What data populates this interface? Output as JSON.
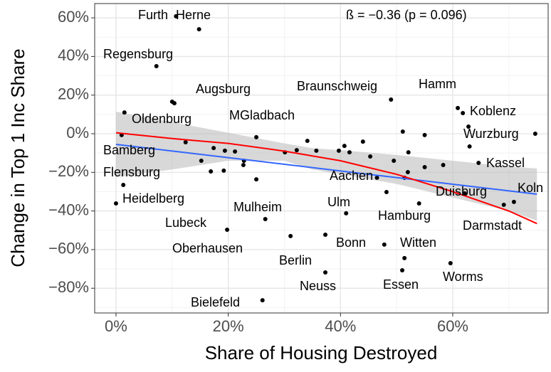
{
  "chart_data": {
    "type": "scatter",
    "x_label": "Share of Housing Destroyed",
    "y_label": "Change in Top 1 Inc Share",
    "annotation": "ß = −0.36 (p = 0.096)",
    "xlim": [
      -3.8,
      77
    ],
    "ylim": [
      -92.8,
      67.4
    ],
    "xticks": [
      {
        "value": 0,
        "label": "0%"
      },
      {
        "value": 20,
        "label": "20%"
      },
      {
        "value": 40,
        "label": "40%"
      },
      {
        "value": 60,
        "label": "60%"
      }
    ],
    "yticks": [
      {
        "value": -80,
        "label": "−80%"
      },
      {
        "value": -60,
        "label": "−60%"
      },
      {
        "value": -40,
        "label": "−40%"
      },
      {
        "value": -20,
        "label": "−20%"
      },
      {
        "value": 0,
        "label": "0%"
      },
      {
        "value": 20,
        "label": "20%"
      },
      {
        "value": 40,
        "label": "40%"
      },
      {
        "value": 60,
        "label": "60%"
      }
    ],
    "grid": true,
    "color": "#000000",
    "labels": [
      "Furth",
      "Herne",
      "Regensburg",
      "Augsburg",
      "MGladbach",
      "Braunschweig",
      "Hamm",
      "Koblenz",
      "Wurzburg",
      "Oldenburg",
      "Bamberg",
      "Flensburg",
      "Heidelberg",
      "Kassel",
      "Koln",
      "Duisburg",
      "Darmstadt",
      "Aachen",
      "Ulm",
      "Hamburg",
      "Lubeck",
      "Mulheim",
      "Oberhausen",
      "Berlin",
      "Bonn",
      "Witten",
      "Neuss",
      "Essen",
      "Worms",
      "Bielefeld",
      null,
      null,
      null,
      null,
      null,
      null,
      null,
      null,
      null,
      null,
      null,
      null,
      null,
      null,
      null,
      null,
      null,
      null,
      null,
      null,
      null,
      null,
      null,
      null,
      null,
      null,
      null,
      null,
      null,
      null,
      null
    ],
    "x": [
      10.7,
      14.8,
      7.2,
      10.0,
      10.4,
      49.0,
      60.9,
      61.8,
      74.7,
      1.5,
      1.0,
      1.3,
      0,
      64.6,
      70.9,
      69.1,
      62.1,
      48.2,
      41.0,
      54.0,
      19.8,
      26.6,
      31.1,
      37.3,
      47.8,
      51.4,
      37.3,
      51.0,
      59.6,
      26.1,
      12.4,
      17.4,
      19.4,
      21.2,
      22.8,
      25.0,
      15.2,
      16.9,
      19.2,
      22.7,
      25.0,
      35.7,
      39.7,
      41.6,
      44.0,
      45.3,
      49.5,
      52.0,
      55.0,
      58.3,
      62.8,
      63.0,
      51.1,
      55.0,
      52.1,
      46.5,
      51.4,
      40.7,
      30.1,
      32.2,
      34.1
    ],
    "y": [
      60.8,
      54.1,
      35.0,
      16.6,
      15.8,
      17.7,
      13.3,
      10.7,
      0,
      11.0,
      -0.7,
      -26.5,
      -36.1,
      -15.1,
      -35.3,
      -36.8,
      -30.9,
      -30.2,
      -41.2,
      -36.1,
      -49.7,
      -44.2,
      -53.0,
      -52.3,
      -57.4,
      -64.4,
      -71.8,
      -70.7,
      -67.0,
      -86.2,
      -4.4,
      -7.4,
      -8.8,
      -9.2,
      -14.0,
      -1.8,
      -14.0,
      -19.5,
      -19.1,
      -16.2,
      -23.6,
      -8.8,
      -8.8,
      -9.6,
      -4.1,
      -11.8,
      -14.0,
      -19.9,
      -17.3,
      -16.2,
      3.7,
      -6.6,
      1.1,
      -0.7,
      -9.6,
      -22.8,
      -22.8,
      -6.3,
      -9.6,
      -8.5,
      -3.7
    ],
    "band": {
      "color": "#bebebe",
      "x": [
        0,
        10,
        20,
        30,
        35,
        40,
        50,
        60,
        70,
        75
      ],
      "upper": [
        11.4,
        6,
        0.5,
        -5,
        -7.5,
        -8.5,
        -11,
        -14,
        -17,
        -18
      ],
      "lower": [
        -22.5,
        -18.5,
        -14,
        -14,
        -18.5,
        -21,
        -26,
        -33,
        -40,
        -45
      ]
    },
    "lines": [
      {
        "color": "#3366ff",
        "x": [
          0,
          75
        ],
        "values": [
          -5.5,
          -31.3
        ]
      },
      {
        "color": "#ff0000",
        "x": [
          0,
          10,
          20,
          30,
          40,
          50,
          60,
          70,
          75
        ],
        "values": [
          0.5,
          -2.5,
          -5,
          -9,
          -14,
          -21,
          -30,
          -40,
          -46.5
        ]
      }
    ]
  }
}
